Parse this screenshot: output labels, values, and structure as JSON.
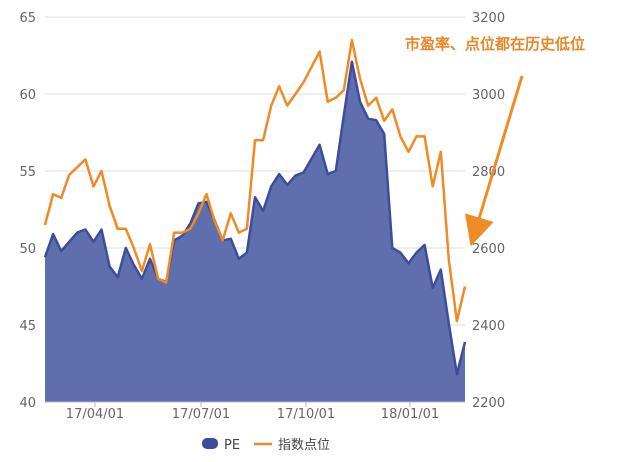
{
  "chart_data": {
    "type": "area",
    "title": "",
    "xlabel": "",
    "ylabel_left": "",
    "ylabel_right": "",
    "grid": true,
    "legend_position": "bottom",
    "x_tick_labels": [
      "17/04/01",
      "17/07/01",
      "17/10/01",
      "18/01/01"
    ],
    "y_left": {
      "range": [
        40,
        65
      ],
      "ticks": [
        40,
        45,
        50,
        55,
        60,
        65
      ]
    },
    "y_right": {
      "range": [
        2200,
        3200
      ],
      "ticks": [
        2200,
        2400,
        2600,
        2800,
        3000,
        3200
      ]
    },
    "series": [
      {
        "name": "PE",
        "type": "area",
        "axis": "left",
        "color": "#3c4e9a",
        "fill": "#5f6eac",
        "values": [
          49.4,
          50.9,
          49.8,
          50.4,
          51.0,
          51.2,
          50.4,
          51.2,
          48.8,
          48.1,
          50.0,
          48.9,
          48.0,
          49.3,
          48.0,
          47.8,
          50.5,
          50.8,
          51.6,
          52.9,
          53.0,
          51.8,
          50.5,
          50.6,
          49.3,
          49.7,
          53.3,
          52.4,
          54.0,
          54.8,
          54.1,
          54.7,
          54.9,
          55.8,
          56.7,
          54.8,
          55.0,
          58.6,
          62.1,
          59.5,
          58.4,
          58.3,
          57.4,
          50.0,
          49.7,
          49.0,
          49.7,
          50.2,
          47.4,
          48.6,
          45.1,
          41.8,
          43.9
        ]
      },
      {
        "name": "指数点位",
        "type": "line",
        "axis": "right",
        "color": "#f08a24",
        "values": [
          2660,
          2740,
          2730,
          2790,
          2810,
          2830,
          2760,
          2800,
          2710,
          2650,
          2650,
          2600,
          2540,
          2610,
          2520,
          2510,
          2640,
          2640,
          2650,
          2690,
          2740,
          2670,
          2620,
          2690,
          2640,
          2650,
          2880,
          2880,
          2970,
          3020,
          2970,
          3000,
          3030,
          3070,
          3110,
          2980,
          2990,
          3010,
          3140,
          3040,
          2970,
          2990,
          2930,
          2960,
          2890,
          2850,
          2890,
          2890,
          2760,
          2850,
          2570,
          2410,
          2500
        ]
      }
    ],
    "legend": [
      "PE",
      "指数点位"
    ],
    "annotation": "市盈率、点位都在历史低位",
    "annotation_color": "#e8862a"
  }
}
